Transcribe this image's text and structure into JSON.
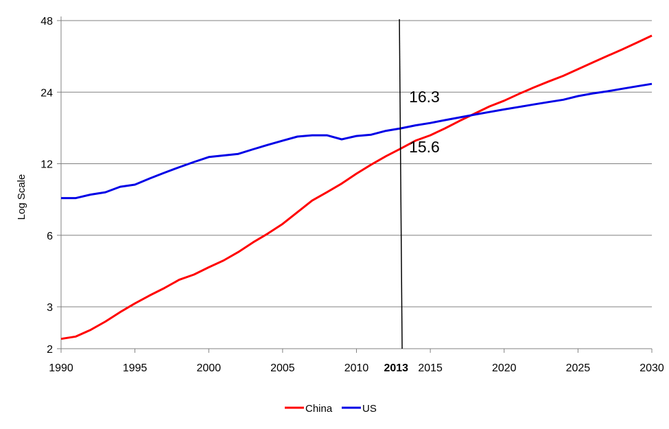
{
  "chart_data": {
    "type": "line",
    "title": "",
    "xlabel": "",
    "ylabel": "Log Scale",
    "y_scale": "log",
    "xlim": [
      1990,
      2030
    ],
    "ylim": [
      2,
      48
    ],
    "y_ticks": [
      2,
      3,
      6,
      12,
      24,
      48
    ],
    "x_ticks": [
      1990,
      1995,
      2000,
      2005,
      2010,
      2013,
      2015,
      2020,
      2025,
      2030
    ],
    "x_tick_labels": [
      "1990",
      "1995",
      "2000",
      "2005",
      "2010",
      "2013",
      "2015",
      "2020",
      "2025",
      "2030"
    ],
    "emphasized_x_tick": "2013",
    "grid": "horizontal",
    "legend_position": "bottom",
    "colors": {
      "China": "#ff0000",
      "US": "#0000e6",
      "marker": "#000000",
      "grid": "#808080"
    },
    "series": [
      {
        "name": "China",
        "x": [
          1990,
          1991,
          1992,
          1993,
          1994,
          1995,
          1996,
          1997,
          1998,
          1999,
          2000,
          2001,
          2002,
          2003,
          2004,
          2005,
          2006,
          2007,
          2008,
          2009,
          2010,
          2011,
          2012,
          2013,
          2014,
          2015,
          2016,
          2017,
          2018,
          2019,
          2020,
          2021,
          2022,
          2023,
          2024,
          2025,
          2026,
          2027,
          2028,
          2029,
          2030
        ],
        "values": [
          2.2,
          2.25,
          2.4,
          2.6,
          2.85,
          3.1,
          3.35,
          3.6,
          3.9,
          4.1,
          4.4,
          4.7,
          5.1,
          5.6,
          6.1,
          6.7,
          7.5,
          8.4,
          9.1,
          9.9,
          10.9,
          11.9,
          12.9,
          13.9,
          15.0,
          15.8,
          16.9,
          18.2,
          19.5,
          20.9,
          22.1,
          23.6,
          25.1,
          26.6,
          28.1,
          30.0,
          32.0,
          34.1,
          36.3,
          38.8,
          41.5
        ]
      },
      {
        "name": "US",
        "x": [
          1990,
          1991,
          1992,
          1993,
          1994,
          1995,
          1996,
          1997,
          1998,
          1999,
          2000,
          2001,
          2002,
          2003,
          2004,
          2005,
          2006,
          2007,
          2008,
          2009,
          2010,
          2011,
          2012,
          2013,
          2014,
          2015,
          2016,
          2017,
          2018,
          2019,
          2020,
          2021,
          2022,
          2023,
          2024,
          2025,
          2026,
          2027,
          2028,
          2029,
          2030
        ],
        "values": [
          8.6,
          8.6,
          8.9,
          9.1,
          9.6,
          9.8,
          10.4,
          11.0,
          11.6,
          12.2,
          12.8,
          13.0,
          13.2,
          13.8,
          14.4,
          15.0,
          15.6,
          15.8,
          15.8,
          15.2,
          15.7,
          15.9,
          16.5,
          16.9,
          17.4,
          17.8,
          18.3,
          18.8,
          19.3,
          19.8,
          20.3,
          20.8,
          21.3,
          21.8,
          22.3,
          23.1,
          23.7,
          24.2,
          24.8,
          25.4,
          26.0
        ]
      }
    ],
    "vertical_marker": {
      "x": 2013
    },
    "annotations": [
      {
        "text": "16.3"
      },
      {
        "text": "15.6"
      }
    ]
  }
}
